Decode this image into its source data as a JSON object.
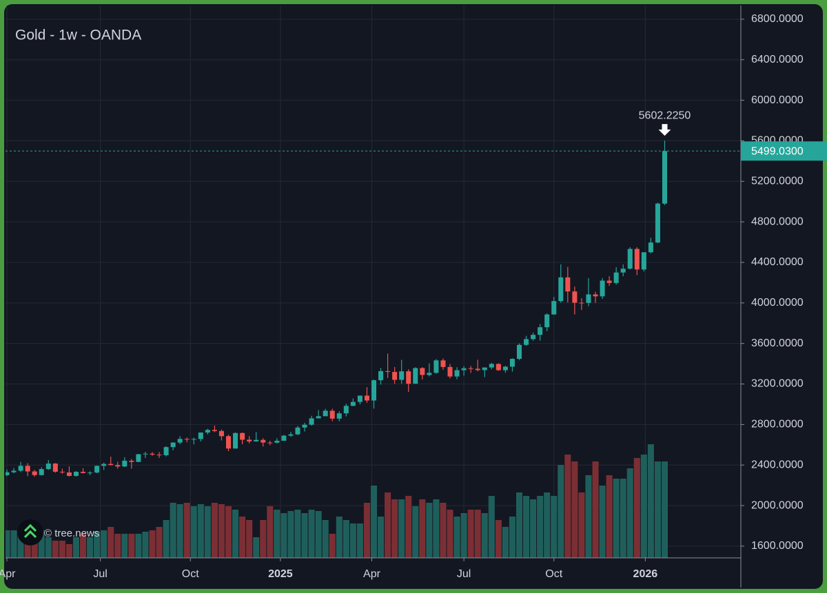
{
  "chart_data": {
    "type": "candlestick",
    "title": "Gold - 1w - OANDA",
    "watermark": "© tree.news",
    "up_color": "#26a69a",
    "down_color": "#ef5350",
    "volume_up_color": "#1f5f5b",
    "volume_down_color": "#7b2f34",
    "open": [
      2300,
      2329,
      2344,
      2392,
      2337,
      2301,
      2360,
      2415,
      2334,
      2327,
      2293,
      2333,
      2321,
      2326,
      2392,
      2411,
      2400,
      2386,
      2443,
      2431,
      2507,
      2512,
      2503,
      2497,
      2577,
      2622,
      2658,
      2653,
      2657,
      2721,
      2747,
      2736,
      2685,
      2563,
      2716,
      2650,
      2633,
      2648,
      2622,
      2621,
      2640,
      2690,
      2703,
      2770,
      2798,
      2861,
      2882,
      2936,
      2858,
      2910,
      2984,
      3023,
      3085,
      3037,
      3237,
      3327,
      3319,
      3241,
      3325,
      3203,
      3357,
      3289,
      3310,
      3433,
      3368,
      3274,
      3336,
      3355,
      3350,
      3337,
      3363,
      3398,
      3336,
      3371,
      3448,
      3586,
      3643,
      3685,
      3760,
      3886,
      4018,
      4252,
      4113,
      4002,
      4000,
      4084,
      4065,
      4220,
      4197,
      4300,
      4338,
      4533,
      4330,
      4500,
      4596,
      4980
    ],
    "high": [
      2355,
      2372,
      2431,
      2418,
      2353,
      2378,
      2450,
      2419,
      2364,
      2387,
      2340,
      2368,
      2339,
      2395,
      2424,
      2483,
      2433,
      2477,
      2460,
      2509,
      2531,
      2528,
      2529,
      2586,
      2625,
      2685,
      2673,
      2670,
      2722,
      2758,
      2790,
      2750,
      2700,
      2721,
      2721,
      2685,
      2726,
      2665,
      2639,
      2665,
      2697,
      2726,
      2786,
      2817,
      2886,
      2942,
      2955,
      2956,
      2930,
      3005,
      3057,
      3086,
      3168,
      3245,
      3358,
      3500,
      3367,
      3438,
      3346,
      3365,
      3366,
      3403,
      3446,
      3452,
      3397,
      3365,
      3375,
      3377,
      3439,
      3363,
      3409,
      3404,
      3379,
      3454,
      3600,
      3675,
      3707,
      3791,
      3897,
      4059,
      4381,
      4356,
      4161,
      4046,
      4245,
      4110,
      4245,
      4264,
      4353,
      4380,
      4550,
      4550,
      4500,
      4643,
      4990,
      5602.225
    ],
    "low": [
      2290,
      2318,
      2330,
      2291,
      2285,
      2297,
      2352,
      2325,
      2314,
      2287,
      2286,
      2317,
      2300,
      2319,
      2351,
      2397,
      2364,
      2381,
      2364,
      2429,
      2470,
      2492,
      2471,
      2485,
      2546,
      2605,
      2624,
      2603,
      2633,
      2703,
      2725,
      2643,
      2537,
      2563,
      2605,
      2613,
      2631,
      2583,
      2596,
      2614,
      2641,
      2679,
      2695,
      2731,
      2789,
      2861,
      2888,
      2833,
      2833,
      2880,
      2982,
      2999,
      3015,
      2957,
      3194,
      3260,
      3202,
      3203,
      3121,
      3203,
      3245,
      3275,
      3301,
      3340,
      3255,
      3246,
      3283,
      3310,
      3325,
      3268,
      3345,
      3330,
      3311,
      3322,
      3436,
      3577,
      3627,
      3628,
      3722,
      3885,
      4002,
      4004,
      3886,
      3930,
      3968,
      4000,
      4040,
      4168,
      4180,
      4263,
      4330,
      4274,
      4310,
      4490,
      4590,
      4965
    ],
    "close": [
      2329,
      2344,
      2392,
      2337,
      2301,
      2360,
      2415,
      2334,
      2327,
      2293,
      2333,
      2321,
      2326,
      2392,
      2411,
      2400,
      2386,
      2443,
      2431,
      2507,
      2512,
      2503,
      2497,
      2577,
      2622,
      2658,
      2653,
      2657,
      2721,
      2747,
      2736,
      2685,
      2563,
      2716,
      2650,
      2633,
      2648,
      2622,
      2621,
      2640,
      2690,
      2703,
      2770,
      2798,
      2861,
      2882,
      2936,
      2858,
      2910,
      2984,
      3023,
      3085,
      3037,
      3237,
      3327,
      3319,
      3241,
      3325,
      3203,
      3357,
      3289,
      3310,
      3433,
      3368,
      3274,
      3336,
      3355,
      3350,
      3337,
      3363,
      3398,
      3336,
      3371,
      3448,
      3586,
      3643,
      3685,
      3760,
      3886,
      4018,
      4252,
      4113,
      4002,
      4000,
      4084,
      4065,
      4220,
      4197,
      4300,
      4338,
      4533,
      4330,
      4500,
      4596,
      4980,
      5499.03
    ],
    "volume": [
      40,
      40,
      35,
      30,
      45,
      40,
      30,
      25,
      25,
      20,
      30,
      35,
      30,
      38,
      40,
      45,
      35,
      35,
      35,
      35,
      38,
      40,
      45,
      55,
      80,
      78,
      80,
      75,
      78,
      75,
      80,
      78,
      75,
      70,
      60,
      55,
      30,
      55,
      75,
      70,
      65,
      68,
      70,
      65,
      70,
      68,
      55,
      35,
      60,
      55,
      50,
      50,
      80,
      105,
      60,
      95,
      85,
      85,
      90,
      75,
      85,
      80,
      85,
      80,
      70,
      60,
      65,
      70,
      70,
      65,
      90,
      55,
      45,
      60,
      95,
      90,
      85,
      90,
      95,
      90,
      135,
      150,
      140,
      95,
      120,
      140,
      105,
      120,
      115,
      115,
      130,
      145,
      150,
      165,
      140,
      140
    ],
    "volume_ylim": [
      0,
      802
    ],
    "xlim": [
      -0.2,
      106
    ],
    "xticks": [
      {
        "value": 0,
        "label": "Apr"
      },
      {
        "value": 13.5,
        "label": "Jul"
      },
      {
        "value": 26.5,
        "label": "Oct"
      },
      {
        "value": 39.5,
        "label": "2025"
      },
      {
        "value": 52.7,
        "label": "Apr"
      },
      {
        "value": 66,
        "label": "Jul"
      },
      {
        "value": 79,
        "label": "Oct"
      },
      {
        "value": 92.2,
        "label": "2026"
      }
    ],
    "ylim": [
      1484,
      6935
    ],
    "yticks": [
      {
        "value": 1600,
        "label": "1600.0000"
      },
      {
        "value": 2000,
        "label": "2000.0000"
      },
      {
        "value": 2400,
        "label": "2400.0000"
      },
      {
        "value": 2800,
        "label": "2800.0000"
      },
      {
        "value": 3200,
        "label": "3200.0000"
      },
      {
        "value": 3600,
        "label": "3600.0000"
      },
      {
        "value": 4000,
        "label": "4000.0000"
      },
      {
        "value": 4400,
        "label": "4400.0000"
      },
      {
        "value": 4800,
        "label": "4800.0000"
      },
      {
        "value": 5200,
        "label": "5200.0000"
      },
      {
        "value": 5600,
        "label": "5600.0000"
      },
      {
        "value": 6000,
        "label": "6000.0000"
      },
      {
        "value": 6400,
        "label": "6400.0000"
      },
      {
        "value": 6800,
        "label": "6800.0000"
      }
    ],
    "grid": true,
    "last_price": {
      "value": 5499.03,
      "label": "5499.0300"
    },
    "high_annotation": {
      "value": 5602.225,
      "label": "5602.2250"
    }
  }
}
